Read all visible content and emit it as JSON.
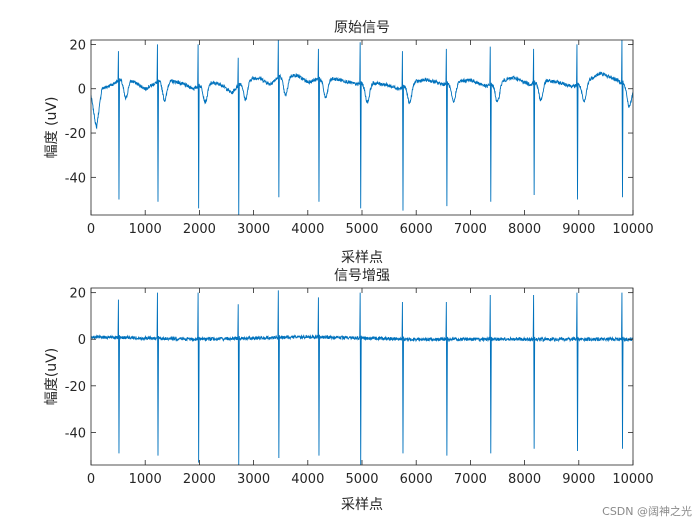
{
  "watermark": "CSDN @阔神之光",
  "chart_data": [
    {
      "type": "line",
      "title": "原始信号",
      "xlabel": "采样点",
      "ylabel": "幅度 (uV)",
      "xlim": [
        0,
        10000
      ],
      "ylim": [
        -57,
        22
      ],
      "xticks": [
        0,
        1000,
        2000,
        3000,
        4000,
        5000,
        6000,
        7000,
        8000,
        9000,
        10000
      ],
      "yticks": [
        20,
        0,
        -20,
        -40
      ],
      "line_color": "#0072BD",
      "grid": false,
      "beats": [
        {
          "x": 510,
          "peak": 17,
          "trough": -50
        },
        {
          "x": 1230,
          "peak": 20,
          "trough": -51
        },
        {
          "x": 1980,
          "peak": 20,
          "trough": -54
        },
        {
          "x": 2720,
          "peak": 14,
          "trough": -57
        },
        {
          "x": 3460,
          "peak": 22,
          "trough": -49
        },
        {
          "x": 4200,
          "peak": 18,
          "trough": -51
        },
        {
          "x": 4970,
          "peak": 21,
          "trough": -54
        },
        {
          "x": 5750,
          "peak": 17,
          "trough": -55
        },
        {
          "x": 6560,
          "peak": 18,
          "trough": -53
        },
        {
          "x": 7370,
          "peak": 19,
          "trough": -51
        },
        {
          "x": 8170,
          "peak": 18,
          "trough": -48
        },
        {
          "x": 8970,
          "peak": 20,
          "trough": -50
        },
        {
          "x": 9800,
          "peak": 22,
          "trough": -49
        }
      ],
      "baseline_points": [
        [
          0,
          -3
        ],
        [
          100,
          -18
        ],
        [
          200,
          0
        ],
        [
          400,
          2
        ],
        [
          600,
          5
        ],
        [
          800,
          3
        ],
        [
          1000,
          0
        ],
        [
          1300,
          4
        ],
        [
          1600,
          3
        ],
        [
          1900,
          0
        ],
        [
          2100,
          3
        ],
        [
          2400,
          2
        ],
        [
          2600,
          -2
        ],
        [
          2800,
          4
        ],
        [
          3100,
          5
        ],
        [
          3300,
          2
        ],
        [
          3500,
          6
        ],
        [
          3800,
          6
        ],
        [
          4000,
          3
        ],
        [
          4300,
          5
        ],
        [
          4600,
          4
        ],
        [
          4900,
          2
        ],
        [
          5100,
          3
        ],
        [
          5400,
          2
        ],
        [
          5700,
          0
        ],
        [
          5900,
          3
        ],
        [
          6200,
          4
        ],
        [
          6500,
          2
        ],
        [
          6700,
          3
        ],
        [
          7000,
          4
        ],
        [
          7300,
          1
        ],
        [
          7500,
          3
        ],
        [
          7800,
          5
        ],
        [
          8100,
          2
        ],
        [
          8300,
          4
        ],
        [
          8600,
          3
        ],
        [
          8900,
          1
        ],
        [
          9100,
          3
        ],
        [
          9400,
          7
        ],
        [
          9700,
          4
        ],
        [
          10000,
          0
        ]
      ],
      "twave_depth": 9
    },
    {
      "type": "line",
      "title": "信号增强",
      "xlabel": "采样点",
      "ylabel": "幅度(uV)",
      "xlim": [
        0,
        10000
      ],
      "ylim": [
        -54,
        22
      ],
      "xticks": [
        0,
        1000,
        2000,
        3000,
        4000,
        5000,
        6000,
        7000,
        8000,
        9000,
        10000
      ],
      "yticks": [
        20,
        0,
        -20,
        -40
      ],
      "line_color": "#0072BD",
      "grid": false,
      "beats": [
        {
          "x": 510,
          "peak": 17,
          "trough": -49
        },
        {
          "x": 1230,
          "peak": 20,
          "trough": -50
        },
        {
          "x": 1980,
          "peak": 20,
          "trough": -53
        },
        {
          "x": 2720,
          "peak": 15,
          "trough": -54
        },
        {
          "x": 3460,
          "peak": 21,
          "trough": -51
        },
        {
          "x": 4200,
          "peak": 18,
          "trough": -50
        },
        {
          "x": 4970,
          "peak": 20,
          "trough": -54
        },
        {
          "x": 5750,
          "peak": 16,
          "trough": -49
        },
        {
          "x": 6560,
          "peak": 16,
          "trough": -50
        },
        {
          "x": 7370,
          "peak": 19,
          "trough": -49
        },
        {
          "x": 8170,
          "peak": 19,
          "trough": -47
        },
        {
          "x": 8970,
          "peak": 20,
          "trough": -48
        },
        {
          "x": 9800,
          "peak": 20,
          "trough": -47
        }
      ],
      "baseline_points": [
        [
          0,
          1
        ],
        [
          2000,
          0
        ],
        [
          4000,
          1
        ],
        [
          6000,
          0
        ],
        [
          8000,
          0
        ],
        [
          10000,
          0
        ]
      ],
      "twave_depth": 0
    }
  ]
}
